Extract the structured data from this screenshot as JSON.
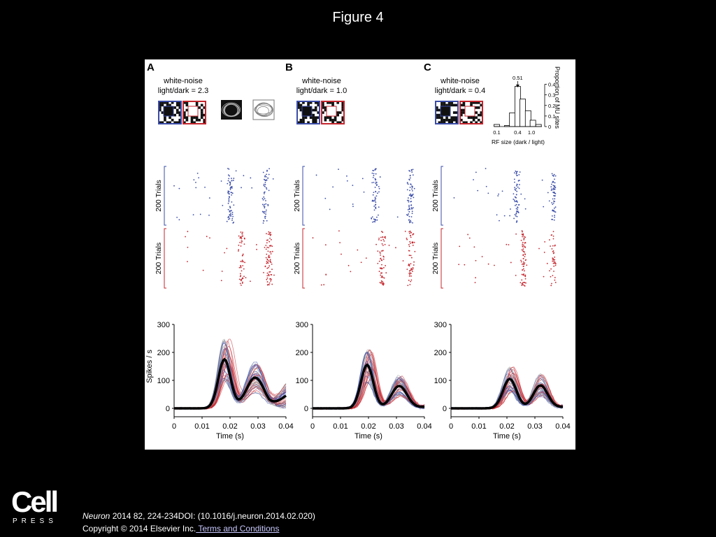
{
  "slide": {
    "title": "Figure 4"
  },
  "panels": [
    {
      "label": "A",
      "stimulus_line1": "white-noise",
      "stimulus_line2": "light/dark = 2.3"
    },
    {
      "label": "B",
      "stimulus_line1": "white-noise",
      "stimulus_line2": "light/dark = 1.0"
    },
    {
      "label": "C",
      "stimulus_line1": "white-noise",
      "stimulus_line2": "light/dark = 0.4"
    }
  ],
  "raster": {
    "ylabel": "200 Trials"
  },
  "colors": {
    "blue": "#3a4ca8",
    "red": "#c4262e",
    "mean": "#000000"
  },
  "histogram": {
    "xlabel": "RF size (dark / light)",
    "ylabel": "Proportion of MU sites",
    "peak_label": "0.51",
    "x_ticks": [
      "0.1",
      "0.4",
      "1.0"
    ],
    "y_ticks": [
      "0",
      "0.1",
      "0.2",
      "0.3",
      "0.4"
    ]
  },
  "chart_data": [
    {
      "type": "bar",
      "xlabel": "RF size (dark / light)",
      "ylabel": "Proportion of MU sites",
      "ylim": [
        0,
        0.45
      ],
      "x_scale": "log",
      "annotation": "0.51",
      "bins": [
        0.1,
        0.14,
        0.2,
        0.28,
        0.4,
        0.56,
        0.8,
        1.1,
        1.6
      ],
      "values": [
        0.02,
        0.0,
        0.01,
        0.13,
        0.38,
        0.26,
        0.15,
        0.06,
        0.02
      ]
    },
    {
      "type": "line",
      "panel": "A",
      "xlabel": "Time (s)",
      "ylabel": "Spikes / s",
      "xlim": [
        0,
        0.04
      ],
      "ylim": [
        0,
        300
      ],
      "x_ticks": [
        "0",
        "0.01",
        "0.02",
        "0.03",
        "0.04"
      ],
      "y_ticks": [
        "0",
        "100",
        "200",
        "300"
      ],
      "series": [
        {
          "peaks": [
            [
              0.018,
              175,
              0.0022
            ],
            [
              0.029,
              110,
              0.0032
            ]
          ],
          "tail": 45
        }
      ]
    },
    {
      "type": "line",
      "panel": "B",
      "xlabel": "Time (s)",
      "ylabel": "",
      "xlim": [
        0,
        0.04
      ],
      "ylim": [
        0,
        300
      ],
      "x_ticks": [
        "0",
        "0.01",
        "0.02",
        "0.03",
        "0.04"
      ],
      "y_ticks": [
        "0",
        "100",
        "200",
        "300"
      ],
      "series": [
        {
          "peaks": [
            [
              0.0195,
              155,
              0.0022
            ],
            [
              0.031,
              80,
              0.0028
            ]
          ],
          "tail": 5
        }
      ]
    },
    {
      "type": "line",
      "panel": "C",
      "xlabel": "Time (s)",
      "ylabel": "",
      "xlim": [
        0,
        0.04
      ],
      "ylim": [
        0,
        300
      ],
      "x_ticks": [
        "0",
        "0.01",
        "0.02",
        "0.03",
        "0.04"
      ],
      "y_ticks": [
        "0",
        "100",
        "200",
        "300"
      ],
      "series": [
        {
          "peaks": [
            [
              0.021,
              105,
              0.0024
            ],
            [
              0.032,
              82,
              0.0026
            ]
          ],
          "tail": 5
        }
      ]
    }
  ],
  "footer": {
    "logo_word": "Cell",
    "logo_sub": "PRESS",
    "journal": "Neuron",
    "citation_rest": " 2014 82, 224-234DOI: (10.1016/j.neuron.2014.02.020)",
    "copyright": "Copyright © 2014 Elsevier Inc.",
    "terms": " Terms and Conditions"
  }
}
